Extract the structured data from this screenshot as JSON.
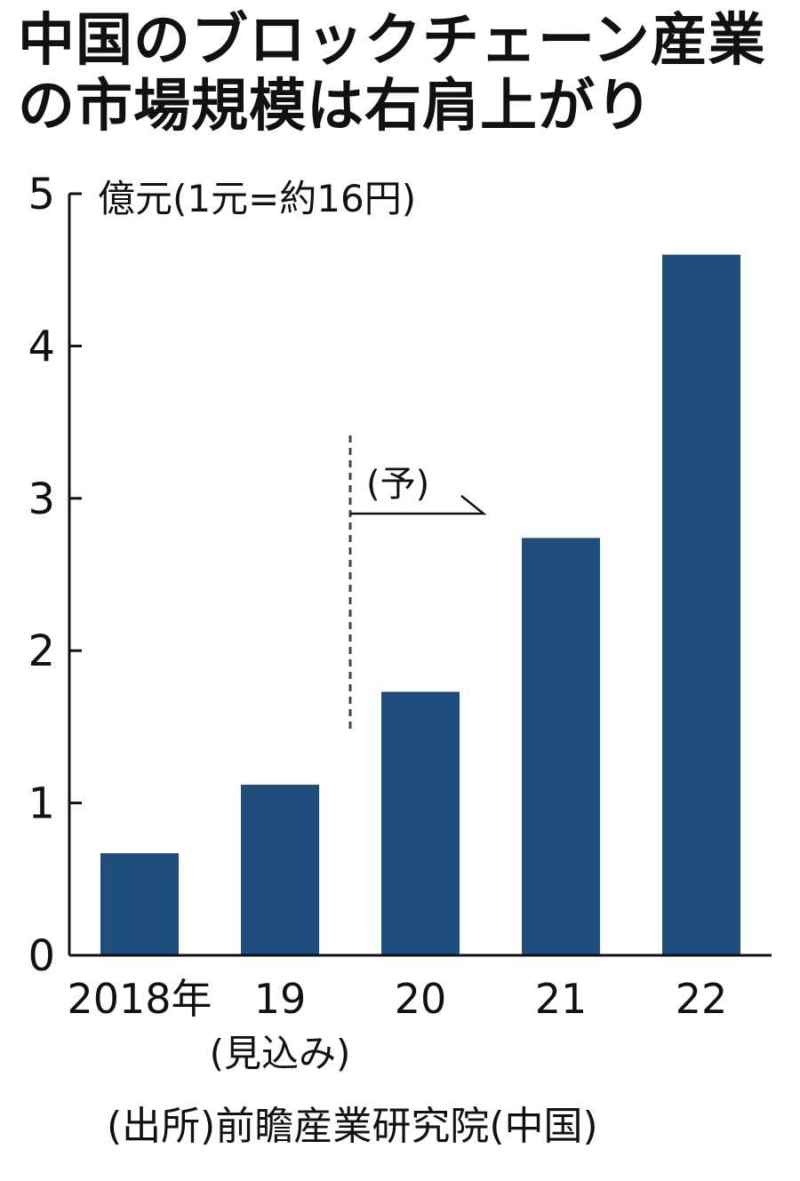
{
  "title": {
    "line1": "中国のブロックチェーン産業",
    "line2": "の市場規模は右肩上がり"
  },
  "chart_data": {
    "type": "bar",
    "unit_label": "億元(1元=約16円)",
    "categories": [
      "2018年",
      "19",
      "20",
      "21",
      "22"
    ],
    "category_sublabels": [
      "",
      "(見込み)",
      "",
      "",
      ""
    ],
    "values": [
      0.67,
      1.12,
      1.73,
      2.74,
      4.6
    ],
    "ylim": [
      0,
      5
    ],
    "yticks": [
      0,
      1,
      2,
      3,
      4,
      5
    ],
    "forecast_label": "(予)",
    "forecast_start_index": 2,
    "bar_color": "#1f4e7c",
    "grid": false
  },
  "source": "(出所)前瞻産業研究院(中国)"
}
